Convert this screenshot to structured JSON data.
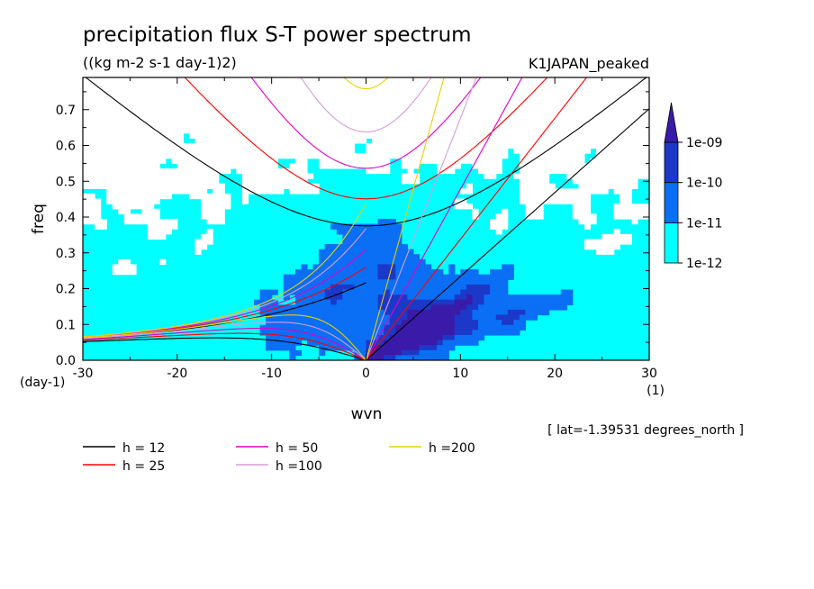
{
  "chart_data": {
    "type": "heatmap",
    "title": "precipitation flux S-T power spectrum",
    "subtitle": "((kg m-2 s-1 day-1)2)",
    "dataset_label": "K1JAPAN_peaked",
    "xlabel": "wvn",
    "ylabel": "freq",
    "x_unit": "(1)",
    "y_unit": "(day-1)",
    "xlim": [
      -30,
      30
    ],
    "ylim": [
      0,
      0.79
    ],
    "xticks": [
      "-30",
      "-20",
      "-10",
      "0",
      "10",
      "20",
      "30"
    ],
    "yticks": [
      "0.0",
      "0.1",
      "0.2",
      "0.3",
      "0.4",
      "0.5",
      "0.6",
      "0.7"
    ],
    "color_levels": [
      "1e-12",
      "1e-11",
      "1e-10",
      "1e-09"
    ],
    "level_colors": [
      "#ffffff",
      "#00ffff",
      "#0a6ff5",
      "#1c38c8",
      "#3a1aa8"
    ],
    "location_note": "[ lat=-1.39531 degrees_north ]",
    "dispersion_curves": [
      {
        "name": "h = 12",
        "h": 12,
        "color": "#000000"
      },
      {
        "name": "h = 25",
        "h": 25,
        "color": "#ff0000"
      },
      {
        "name": "h = 50",
        "h": 50,
        "color": "#e000c8"
      },
      {
        "name": "h =100",
        "h": 100,
        "color": "#d89cd8"
      },
      {
        "name": "h =200",
        "h": 200,
        "color": "#e8d000"
      }
    ]
  }
}
